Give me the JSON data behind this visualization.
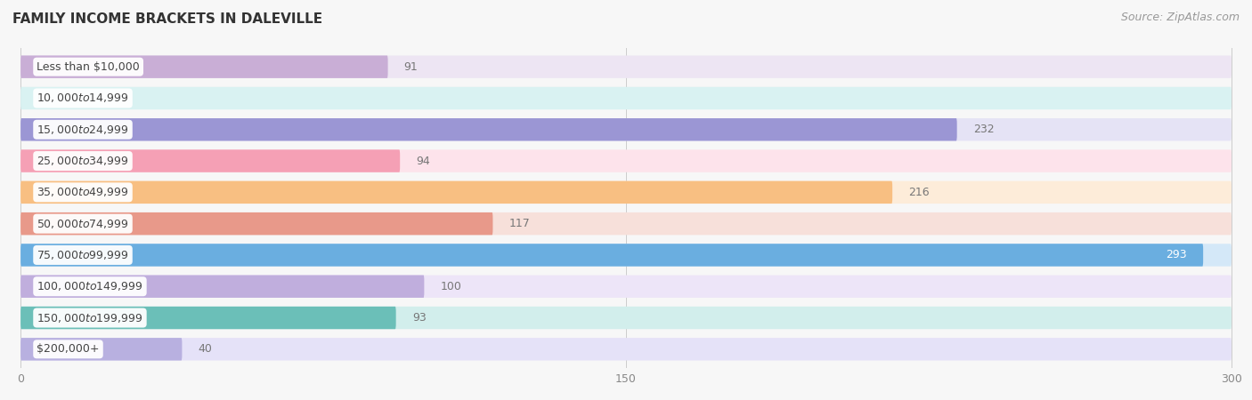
{
  "title": "FAMILY INCOME BRACKETS IN DALEVILLE",
  "source_text": "Source: ZipAtlas.com",
  "categories": [
    "Less than $10,000",
    "$10,000 to $14,999",
    "$15,000 to $24,999",
    "$25,000 to $34,999",
    "$35,000 to $49,999",
    "$50,000 to $74,999",
    "$75,000 to $99,999",
    "$100,000 to $149,999",
    "$150,000 to $199,999",
    "$200,000+"
  ],
  "values": [
    91,
    0,
    232,
    94,
    216,
    117,
    293,
    100,
    93,
    40
  ],
  "bar_colors": [
    "#c9aed6",
    "#7ececa",
    "#9b96d4",
    "#f5a0b5",
    "#f8bf82",
    "#e8998a",
    "#6aaee0",
    "#c0aedd",
    "#6bbfb8",
    "#b8b0e0"
  ],
  "bar_bg_colors": [
    "#ede5f3",
    "#d9f2f2",
    "#e5e3f5",
    "#fde3eb",
    "#fdecd9",
    "#f7e0da",
    "#d4e8f8",
    "#ede5f8",
    "#d2eeec",
    "#e5e2f8"
  ],
  "xmax": 300,
  "xticks": [
    0,
    150,
    300
  ],
  "title_fontsize": 11,
  "source_fontsize": 9,
  "label_fontsize": 9,
  "category_fontsize": 9,
  "background_color": "#f7f7f7",
  "inside_label_threshold": 260
}
